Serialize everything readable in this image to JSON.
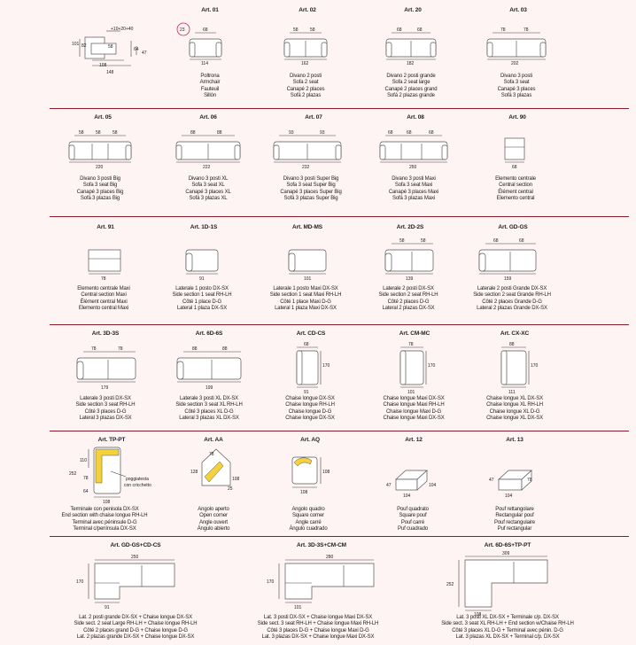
{
  "row1": [
    {
      "art": "Art. 01",
      "dims": [
        "68",
        "114"
      ],
      "desc": [
        "Poltrona",
        "Armchair",
        "Fauteuil",
        "Sillón"
      ],
      "badge": "23"
    },
    {
      "art": "Art. 02",
      "dims": [
        "58",
        "58",
        "162"
      ],
      "desc": [
        "Divano 2 posti",
        "Sofa 2 seat",
        "Canapé 2 places",
        "Sofá 2 plazas"
      ]
    },
    {
      "art": "Art. 20",
      "dims": [
        "68",
        "68",
        "182"
      ],
      "desc": [
        "Divano 2 posti grande",
        "Sofa 2 seat large",
        "Canapé 2 places grand",
        "Sofá 2 plazas grande"
      ]
    },
    {
      "art": "Art. 03",
      "dims": [
        "78",
        "78",
        "202"
      ],
      "desc": [
        "Divano 3 posti",
        "Sofa 3 seat",
        "Canapé 3 places",
        "Sofá 3 plazas"
      ]
    }
  ],
  "section_dims": {
    "d101": "101",
    "d82": "82",
    "d10_20_40": "+10+20+40",
    "d58": "58",
    "d64": "64",
    "d47": "47",
    "d108": "108",
    "d148": "148"
  },
  "row2": [
    {
      "art": "Art. 05",
      "dims": [
        "58",
        "58",
        "58",
        "220"
      ],
      "desc": [
        "Divano 3 posti Big",
        "Sofa 3 seat Big",
        "Canapé 3 places Big",
        "Sofá 3 plazas Big"
      ]
    },
    {
      "art": "Art. 06",
      "dims": [
        "88",
        "88",
        "222"
      ],
      "desc": [
        "Divano 3 posti XL",
        "Sofa 3 seat XL",
        "Canapé 3 places XL",
        "Sofá 3 plazas XL"
      ]
    },
    {
      "art": "Art. 07",
      "dims": [
        "93",
        "93",
        "232"
      ],
      "desc": [
        "Divano 3 posti Super Big",
        "Sofa 3 seat Super Big",
        "Canapé 3 places Super Big",
        "Sofá 3 plazas Super Big"
      ]
    },
    {
      "art": "Art. 08",
      "dims": [
        "68",
        "68",
        "68",
        "250"
      ],
      "desc": [
        "Divano 3 posti Maxi",
        "Sofa 3 seat Maxi",
        "Canapé 3 places Maxi",
        "Sofá 3 plazas Maxi"
      ]
    },
    {
      "art": "Art. 90",
      "dims": [
        "68"
      ],
      "desc": [
        "Elemento centrale",
        "Central section",
        "Élément central",
        "Elemento central"
      ]
    }
  ],
  "row3": [
    {
      "art": "Art. 91",
      "dims": [
        "78"
      ],
      "desc": [
        "Elemento centrale Maxi",
        "Central section Maxi",
        "Élément central Maxi",
        "Elemento central Maxi"
      ]
    },
    {
      "art": "Art. 1D-1S",
      "dims": [
        "91"
      ],
      "desc": [
        "Laterale 1 posto DX-SX",
        "Side section 1 seat RH-LH",
        "Côté 1 place D-G",
        "Lateral 1 plaza DX-SX"
      ]
    },
    {
      "art": "Art. MD-MS",
      "dims": [
        "101"
      ],
      "desc": [
        "Laterale 1 posto Maxi DX-SX",
        "Side section 1 seat Maxi RH-LH",
        "Côté 1 place Maxi D-G",
        "Lateral 1 plaza Maxi DX-SX"
      ]
    },
    {
      "art": "Art. 2D-2S",
      "dims": [
        "58",
        "58",
        "139"
      ],
      "desc": [
        "Laterale 2 posti DX-SX",
        "Side section 2 seat RH-LH",
        "Côté 2 places D-G",
        "Lateral 2 plazas DX-SX"
      ]
    },
    {
      "art": "Art. GD-GS",
      "dims": [
        "68",
        "68",
        "159"
      ],
      "desc": [
        "Laterale 2 posti Grande DX-SX",
        "Side section 2 seat Grande RH-LH",
        "Côté 2 places Grande D-G",
        "Lateral 2 plazas Grande DX-SX"
      ]
    }
  ],
  "row4": [
    {
      "art": "Art. 3D-3S",
      "dims": [
        "78",
        "78",
        "179"
      ],
      "desc": [
        "Laterale 3 posti DX-SX",
        "Side section 3 seat RH-LH",
        "Côté 3 places D-G",
        "Lateral 3 plazas DX-SX"
      ]
    },
    {
      "art": "Art. 6D-6S",
      "dims": [
        "88",
        "88",
        "199"
      ],
      "desc": [
        "Laterale 3 posti XL DX-SX",
        "Side section 3 seat XL RH-LH",
        "Côté 3 places XL D-G",
        "Lateral 3 plazas XL DX-SX"
      ]
    },
    {
      "art": "Art. CD-CS",
      "dims": [
        "68",
        "170",
        "91"
      ],
      "desc": [
        "Chaise longue DX-SX",
        "Chaise longue RH-LH",
        "Chaise longue D-G",
        "Chaise longue DX-SX"
      ]
    },
    {
      "art": "Art. CM-MC",
      "dims": [
        "78",
        "170",
        "101"
      ],
      "desc": [
        "Chaise longue Maxi DX-SX",
        "Chaise longue Maxi RH-LH",
        "Chaise longue Maxi D-G",
        "Chaise longue Maxi DX-SX"
      ]
    },
    {
      "art": "Art. CX-XC",
      "dims": [
        "88",
        "170",
        "111"
      ],
      "desc": [
        "Chaise longue XL DX-SX",
        "Chaise longue XL RH-LH",
        "Chaise longue XL D-G",
        "Chaise longue XL DX-SX"
      ]
    }
  ],
  "row5": [
    {
      "art": "Art. TP-PT",
      "dims": [
        "110",
        "252",
        "78",
        "64",
        "108"
      ],
      "note": [
        "poggiatesta",
        "con cricchetto"
      ],
      "desc": [
        "Terminale con penisola DX-SX",
        "End section with chaise longue RH-LH",
        "Terminal avec péninsule D-G",
        "Terminal c/península DX-SX"
      ]
    },
    {
      "art": "Art. AA",
      "dims": [
        "78",
        "128",
        "108",
        "25"
      ],
      "desc": [
        "Angolo aperto",
        "Open corner",
        "Angle ouvert",
        "Ángulo abierto"
      ]
    },
    {
      "art": "Art. AQ",
      "dims": [
        "108",
        "108"
      ],
      "desc": [
        "Angolo quadro",
        "Square corner",
        "Angle carré",
        "Ángulo cuadrado"
      ]
    },
    {
      "art": "Art. 12",
      "dims": [
        "47",
        "104",
        "104"
      ],
      "desc": [
        "Pouf quadrato",
        "Square pouf",
        "Pouf carré",
        "Puf cuadrado"
      ]
    },
    {
      "art": "Art. 13",
      "dims": [
        "47",
        "78",
        "104"
      ],
      "desc": [
        "Pouf rettangolare",
        "Rectangular pouf",
        "Pouf rectangulaire",
        "Puf rectangular"
      ]
    }
  ],
  "row6": [
    {
      "art": "Art. GD-GS+CD-CS",
      "dims": [
        "250",
        "170",
        "91"
      ],
      "desc": [
        "Lat. 2 posti grande DX-SX + Chaise longue DX-SX",
        "Side sect. 2 seat Large RH-LH + Chaise longue RH-LH",
        "Côté 2 places grand D-G + Chaise longue D-G",
        "Lat. 2 plazas grande DX-SX + Chaise longue DX-SX"
      ]
    },
    {
      "art": "Art. 3D-3S+CM-CM",
      "dims": [
        "280",
        "170",
        "101"
      ],
      "desc": [
        "Lat. 3 posti DX-SX + Chaise longue Maxi DX-SX",
        "Side sect. 3 seat RH-LH + Chaise longue Maxi RH-LH",
        "Côté 3 places D-G + Chaise longue Maxi D-G",
        "Lat. 3 plazas DX-SX + Chaise longue Maxi DX-SX"
      ]
    },
    {
      "art": "Art. 6D-6S+TP-PT",
      "dims": [
        "309",
        "252",
        "108"
      ],
      "desc": [
        "Lat. 3 posti XL DX-SX + Terminale c/p. DX-SX",
        "Side sect. 3 seat XL RH-LH + End section w/Chaise RH-LH",
        "Côté 3 places XL D-G + Terminal avec pénin. D-G",
        "Lat. 3 plazas XL DX-SX + Terminal c/p. DX-SX"
      ]
    }
  ]
}
